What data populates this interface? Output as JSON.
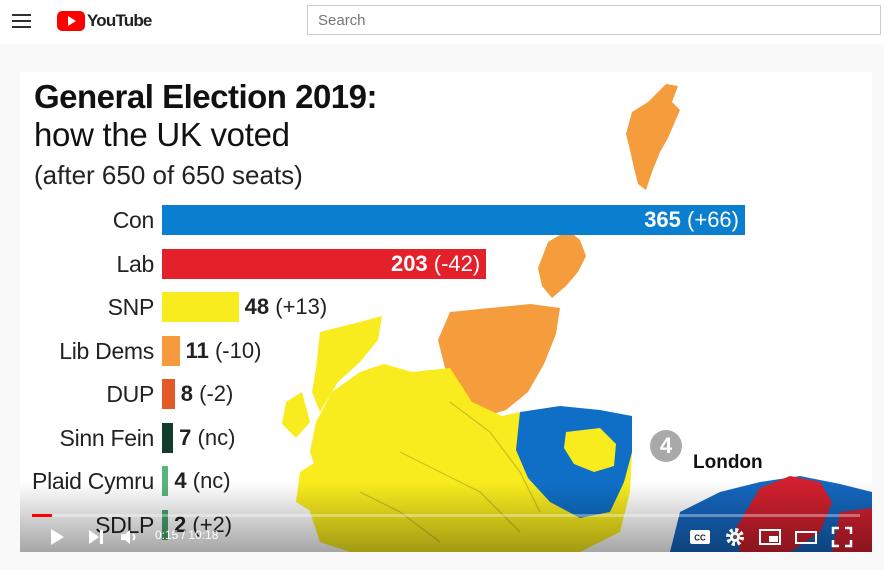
{
  "header": {
    "logo_text": "YouTube",
    "search_placeholder": "Search"
  },
  "video": {
    "title_line1": "General Election 2019:",
    "title_line2": "how the UK voted",
    "title_line3": "(after 650 of 650 seats)",
    "map_badge_number": "4",
    "map_label": "London",
    "chart_data": {
      "type": "bar",
      "categories": [
        "Con",
        "Lab",
        "SNP",
        "Lib Dems",
        "DUP",
        "Sinn Fein",
        "Plaid Cymru",
        "SDLP"
      ],
      "values": [
        365,
        203,
        48,
        11,
        8,
        7,
        4,
        2
      ],
      "changes": [
        "(+66)",
        "(-42)",
        "(+13)",
        "(-10)",
        "(-2)",
        "(nc)",
        "(nc)",
        "(+2)"
      ],
      "colors": [
        "#0a7fd0",
        "#e4202a",
        "#f8ec1e",
        "#f79a3e",
        "#e35a27",
        "#133c2a",
        "#5bb47c",
        "#46a36a"
      ],
      "xlim": [
        0,
        365
      ]
    }
  },
  "controls": {
    "current_time": "0:15",
    "duration": "10:18",
    "time_separator": " / ",
    "progress": 0.024
  }
}
